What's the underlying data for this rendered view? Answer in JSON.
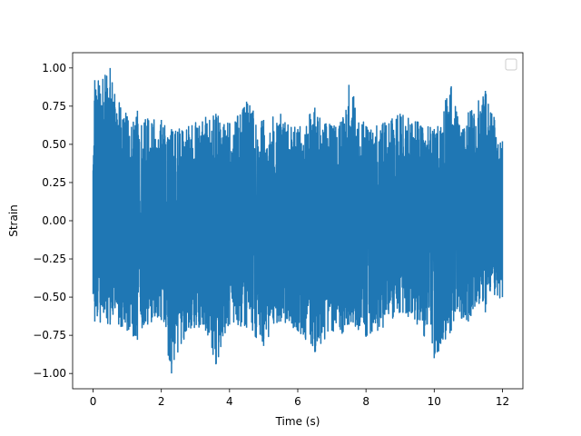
{
  "chart_data": {
    "type": "line",
    "xlabel": "Time (s)",
    "ylabel": "Strain",
    "xlim": [
      -0.6,
      12.6
    ],
    "ylim": [
      -1.1,
      1.1
    ],
    "xticks": [
      0,
      2,
      4,
      6,
      8,
      10,
      12
    ],
    "xtick_labels": [
      "0",
      "2",
      "4",
      "6",
      "8",
      "10",
      "12"
    ],
    "yticks": [
      -1.0,
      -0.75,
      -0.5,
      -0.25,
      0.0,
      0.25,
      0.5,
      0.75,
      1.0
    ],
    "ytick_labels": [
      "−1.00",
      "−0.75",
      "−0.50",
      "−0.25",
      "0.00",
      "0.25",
      "0.50",
      "0.75",
      "1.00"
    ],
    "grid": false,
    "legend": {
      "placement": "top-right",
      "entries": []
    },
    "series": [
      {
        "color": "#1f77b4",
        "x_start": 0,
        "x_end": 12,
        "envelope": {
          "x": [
            0,
            0.05,
            0.5,
            1,
            1.3,
            1.6,
            2,
            2.3,
            2.8,
            3.3,
            3.6,
            4,
            4.5,
            5,
            5.5,
            6,
            6.5,
            7,
            7.3,
            7.5,
            8,
            8.5,
            9,
            9.5,
            10,
            10.5,
            10.8,
            11,
            11.5,
            12
          ],
          "max": [
            0.33,
            0.92,
            1.0,
            0.68,
            0.72,
            0.67,
            0.66,
            0.6,
            0.62,
            0.68,
            0.7,
            0.64,
            0.78,
            0.66,
            0.7,
            0.6,
            0.74,
            0.62,
            0.65,
            0.89,
            0.62,
            0.64,
            0.7,
            0.65,
            0.6,
            0.88,
            0.58,
            0.71,
            0.85,
            0.52
          ],
          "min": [
            -0.48,
            -0.66,
            -0.68,
            -0.72,
            -0.78,
            -0.68,
            -0.65,
            -1.0,
            -0.7,
            -0.72,
            -0.94,
            -0.68,
            -0.7,
            -0.82,
            -0.66,
            -0.72,
            -0.86,
            -0.72,
            -0.74,
            -0.68,
            -0.76,
            -0.7,
            -0.6,
            -0.68,
            -0.9,
            -0.72,
            -0.64,
            -0.66,
            -0.6,
            -0.5
          ]
        }
      }
    ]
  }
}
